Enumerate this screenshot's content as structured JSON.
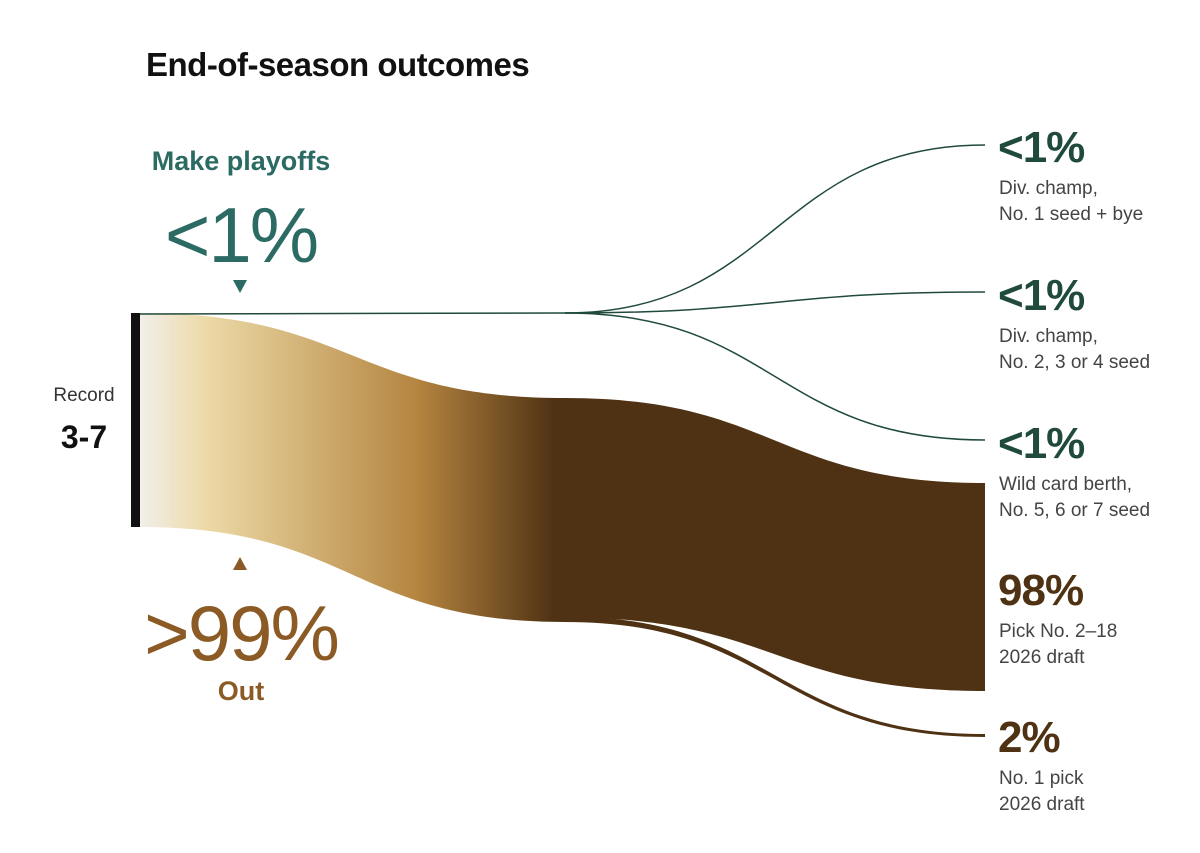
{
  "chart_data": {
    "type": "sankey",
    "title": "End-of-season outcomes",
    "record": {
      "label": "Record",
      "value": "3-7"
    },
    "groups": [
      {
        "name": "playoffs",
        "label": "Make playoffs",
        "value_text": "<1%",
        "color": "#2c6b63"
      },
      {
        "name": "out",
        "label": "Out",
        "value_text": ">99%",
        "color": "#8b5a25"
      }
    ],
    "outcomes": [
      {
        "group": "playoffs",
        "value": 0.3,
        "value_text": "<1%",
        "desc_lines": [
          "Div. champ,",
          "No. 1 seed + bye"
        ],
        "color": "#1f4a3c"
      },
      {
        "group": "playoffs",
        "value": 0.3,
        "value_text": "<1%",
        "desc_lines": [
          "Div. champ,",
          "No. 2, 3 or 4 seed"
        ],
        "color": "#1f4a3c"
      },
      {
        "group": "playoffs",
        "value": 0.3,
        "value_text": "<1%",
        "desc_lines": [
          "Wild card berth,",
          "No. 5, 6 or 7 seed"
        ],
        "color": "#1f4a3c"
      },
      {
        "group": "out",
        "value": 98,
        "value_text": "98%",
        "desc_lines": [
          "Pick No. 2–18",
          "2026 draft"
        ],
        "color": "#4f3213"
      },
      {
        "group": "out",
        "value": 2,
        "value_text": "2%",
        "desc_lines": [
          "No. 1 pick",
          "2026 draft"
        ],
        "color": "#4f3213"
      }
    ],
    "colors": {
      "bar": "#111111",
      "gradient_start": "#f2efe9",
      "gradient_light": "#ecd9a6",
      "gradient_mid": "#b4843f",
      "gradient_dark": "#4f3213",
      "playoff_line": "#1f4a3c",
      "out_dark": "#4f3213"
    }
  }
}
